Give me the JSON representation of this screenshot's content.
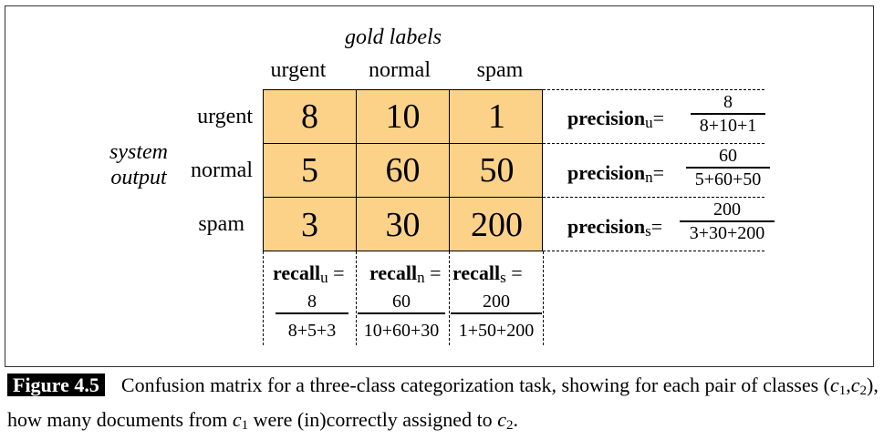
{
  "gold_title": "gold labels",
  "system_label": [
    "system",
    "output"
  ],
  "columns": [
    "urgent",
    "normal",
    "spam"
  ],
  "rows": [
    "urgent",
    "normal",
    "spam"
  ],
  "matrix": [
    [
      "8",
      "10",
      "1"
    ],
    [
      "5",
      "60",
      "50"
    ],
    [
      "3",
      "30",
      "200"
    ]
  ],
  "precision": [
    {
      "label": "precision",
      "sub": "u",
      "eq": "=",
      "num": "8",
      "den": "8+10+1"
    },
    {
      "label": "precision",
      "sub": "n",
      "eq": "=",
      "num": "60",
      "den": "5+60+50"
    },
    {
      "label": "precision",
      "sub": "s",
      "eq": "=",
      "num": "200",
      "den": "3+30+200"
    }
  ],
  "recall": [
    {
      "label": "recall",
      "sub": "u",
      "eq": " =",
      "num": "8",
      "den": "8+5+3"
    },
    {
      "label": "recall",
      "sub": "n",
      "eq": " =",
      "num": "60",
      "den": "10+60+30"
    },
    {
      "label": "recall",
      "sub": "s",
      "eq": " =",
      "num": "200",
      "den": "1+50+200"
    }
  ],
  "caption": {
    "figure_label": "Figure 4.5",
    "text_1": "Confusion matrix for a three-class categorization task, showing for each pair of classes (",
    "c": "c",
    "one": "1",
    "comma": ",",
    "two": "2",
    "text_2": "), how many documents from ",
    "text_3": " were (in)correctly assigned to ",
    "text_4": "."
  }
}
